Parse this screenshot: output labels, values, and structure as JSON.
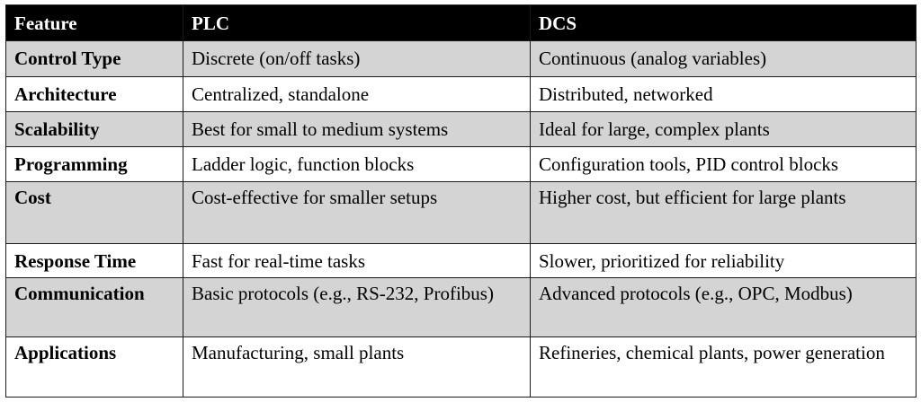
{
  "colors": {
    "header_bg": "#000000",
    "header_text": "#ffffff",
    "shaded_row": "#d4d4d4",
    "plain_row": "#ffffff",
    "border": "#1a1a1a"
  },
  "table": {
    "headers": [
      "Feature",
      "PLC",
      "DCS"
    ],
    "rows": [
      {
        "feature": "Control Type",
        "plc": "Discrete (on/off tasks)",
        "dcs": "Continuous (analog variables)"
      },
      {
        "feature": "Architecture",
        "plc": "Centralized, standalone",
        "dcs": "Distributed, networked"
      },
      {
        "feature": "Scalability",
        "plc": "Best for small to medium systems",
        "dcs": "Ideal for large, complex plants"
      },
      {
        "feature": "Programming",
        "plc": "Ladder logic, function blocks",
        "dcs": "Configuration tools, PID control blocks"
      },
      {
        "feature": "Cost",
        "plc": "Cost-effective for smaller setups",
        "dcs": "Higher cost, but efficient for large plants"
      },
      {
        "feature": "Response Time",
        "plc": "Fast for real-time tasks",
        "dcs": "Slower, prioritized for reliability"
      },
      {
        "feature": "Communication",
        "plc": "Basic protocols (e.g., RS-232, Profibus)",
        "dcs": "Advanced protocols (e.g., OPC, Modbus)"
      },
      {
        "feature": "Applications",
        "plc": "Manufacturing, small plants",
        "dcs": "Refineries, chemical plants, power generation"
      }
    ]
  }
}
